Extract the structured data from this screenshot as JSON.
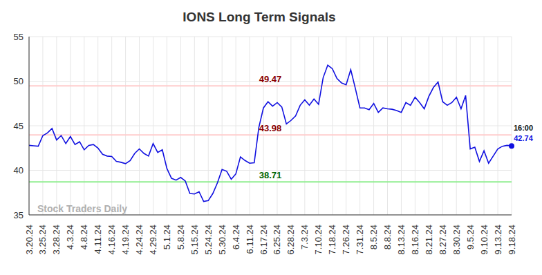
{
  "chart_data": {
    "type": "line",
    "title": "IONS Long Term Signals",
    "watermark": "Stock Traders Daily",
    "annotation": "16:00",
    "categories": [
      "3.20.24",
      null,
      null,
      "3.25.24",
      null,
      null,
      "3.28.24",
      null,
      null,
      "4.3.24",
      null,
      null,
      "4.8.24",
      null,
      null,
      "4.11.24",
      null,
      null,
      "4.16.24",
      null,
      null,
      "4.19.24",
      null,
      null,
      "4.24.24",
      null,
      null,
      "4.29.24",
      null,
      null,
      "5.1.24",
      null,
      null,
      "5.8.24",
      null,
      null,
      "5.15.24",
      null,
      null,
      "5.24.24",
      null,
      null,
      "5.30.24",
      null,
      null,
      "6.4.24",
      null,
      null,
      "6.11.24",
      null,
      null,
      "6.17.24",
      null,
      null,
      "6.25.24",
      null,
      null,
      "6.28.24",
      null,
      null,
      "7.3.24",
      null,
      null,
      "7.10.24",
      null,
      null,
      "7.18.24",
      null,
      null,
      "7.26.24",
      null,
      null,
      "7.31.24",
      null,
      null,
      "8.5.24",
      null,
      null,
      "8.8.24",
      null,
      null,
      "8.13.24",
      null,
      null,
      "8.16.24",
      null,
      null,
      "8.21.24",
      null,
      null,
      "8.27.24",
      null,
      null,
      "8.30.24",
      null,
      null,
      "9.5.24",
      null,
      null,
      "9.10.24",
      null,
      null,
      "9.13.24",
      null,
      null,
      "9.18.24"
    ],
    "values": [
      42.8,
      42.75,
      42.7,
      43.9,
      44.2,
      44.7,
      43.4,
      43.9,
      43.0,
      43.8,
      42.9,
      43.2,
      42.3,
      42.8,
      42.9,
      42.5,
      41.8,
      41.6,
      41.55,
      41.0,
      40.9,
      40.75,
      41.1,
      41.9,
      42.4,
      41.9,
      41.6,
      43.0,
      42.0,
      42.3,
      40.2,
      39.1,
      38.9,
      39.2,
      38.8,
      37.4,
      37.35,
      37.6,
      36.5,
      36.6,
      37.4,
      38.6,
      40.1,
      39.9,
      39.0,
      39.6,
      41.5,
      41.1,
      40.8,
      40.85,
      44.8,
      47.0,
      47.7,
      47.2,
      47.6,
      47.1,
      45.2,
      45.6,
      46.1,
      47.3,
      47.9,
      47.3,
      48.0,
      47.4,
      50.4,
      51.8,
      51.4,
      50.3,
      49.8,
      49.6,
      51.3,
      49.2,
      47.0,
      47.0,
      46.8,
      47.5,
      46.5,
      47.0,
      46.9,
      46.85,
      46.7,
      46.5,
      47.6,
      47.3,
      48.2,
      47.6,
      46.9,
      48.3,
      49.3,
      49.9,
      47.7,
      47.3,
      47.6,
      48.2,
      46.9,
      48.4,
      42.4,
      42.6,
      41.0,
      42.2,
      40.8,
      41.6,
      42.4,
      42.7,
      42.8,
      42.74
    ],
    "color": "#1010e0",
    "ylim": [
      35,
      55
    ],
    "yticks": [
      35,
      40,
      45,
      50,
      55
    ],
    "grid": true,
    "reference_lines": [
      {
        "value": 49.47,
        "label": "49.47",
        "color": "#ffcccc",
        "label_color": "#8b0000"
      },
      {
        "value": 43.98,
        "label": "43.98",
        "color": "#ffcccc",
        "label_color": "#8b0000"
      },
      {
        "value": 38.71,
        "label": "38.71",
        "color": "#90ee90",
        "label_color": "#006400"
      }
    ]
  }
}
